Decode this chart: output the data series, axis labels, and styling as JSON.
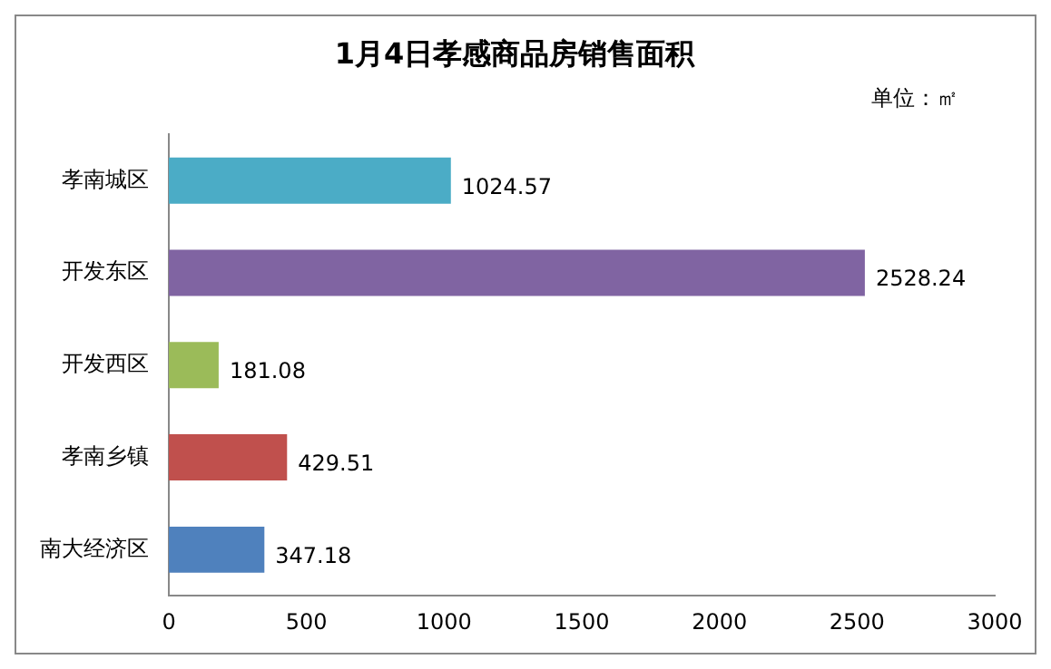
{
  "chart_data": {
    "type": "bar",
    "orientation": "horizontal",
    "title": "1月4日孝感商品房销售面积",
    "annotations": [
      "单位：㎡"
    ],
    "categories": [
      "孝南城区",
      "开发东区",
      "开发西区",
      "孝南乡镇",
      "南大经济区"
    ],
    "values": [
      1024.57,
      2528.24,
      181.08,
      429.51,
      347.18
    ],
    "colors": [
      "#4bacc6",
      "#8064a2",
      "#9bbb59",
      "#c0504d",
      "#4f81bd"
    ],
    "xlim": [
      0,
      3000
    ],
    "xticks": [
      0,
      500,
      1000,
      1500,
      2000,
      2500,
      3000
    ],
    "grid": false,
    "legend": false,
    "data_labels": true
  }
}
